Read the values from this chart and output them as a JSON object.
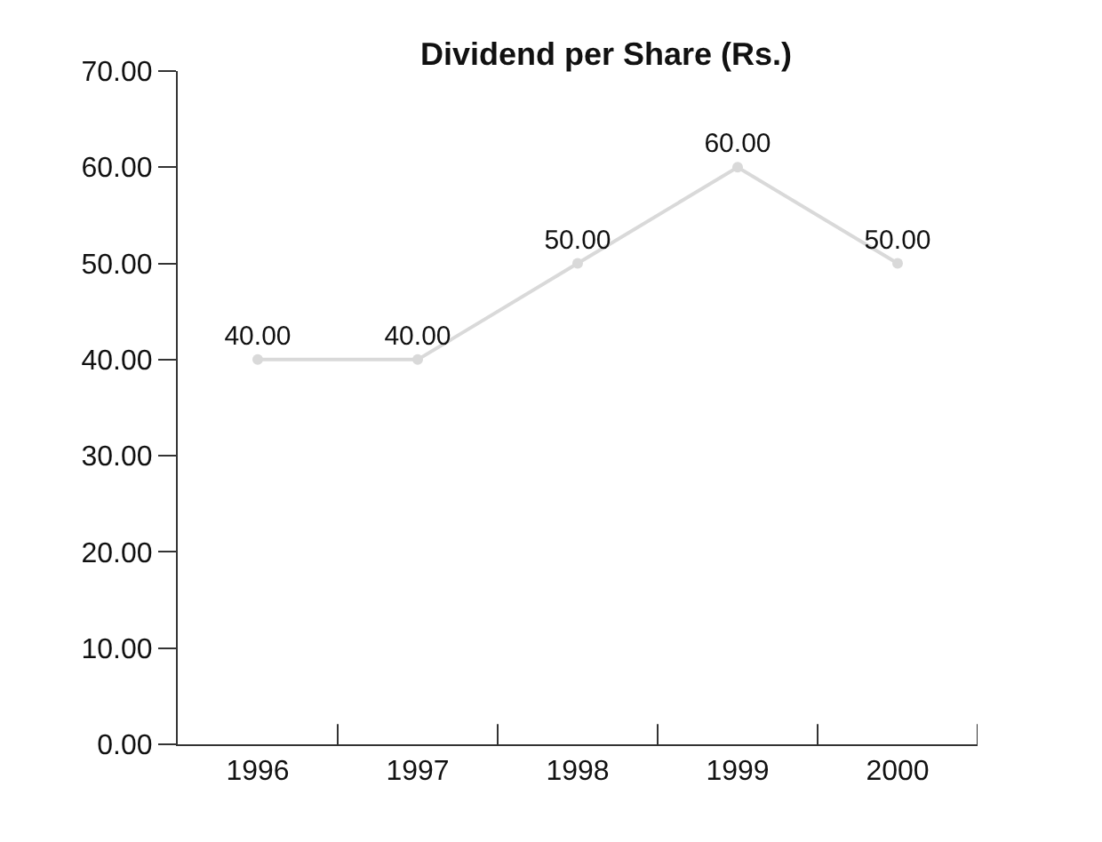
{
  "chart_data": {
    "type": "line",
    "title": "Dividend per Share (Rs.)",
    "categories": [
      "1996",
      "1997",
      "1998",
      "1999",
      "2000"
    ],
    "series": [
      {
        "color": "#d9d9d9",
        "values": [
          40,
          40,
          50,
          60,
          50
        ],
        "value_labels": [
          "40.00",
          "40.00",
          "50.00",
          "60.00",
          "50.00"
        ]
      }
    ],
    "ylim": [
      0,
      70
    ],
    "yticks": [
      {
        "value": 0,
        "label": "0.00"
      },
      {
        "value": 10,
        "label": "10.00"
      },
      {
        "value": 20,
        "label": "20.00"
      },
      {
        "value": 30,
        "label": "30.00"
      },
      {
        "value": 40,
        "label": "40.00"
      },
      {
        "value": 50,
        "label": "50.00"
      },
      {
        "value": 60,
        "label": "60.00"
      },
      {
        "value": 70,
        "label": "70.00"
      }
    ],
    "marker": "circle",
    "grid": false
  }
}
